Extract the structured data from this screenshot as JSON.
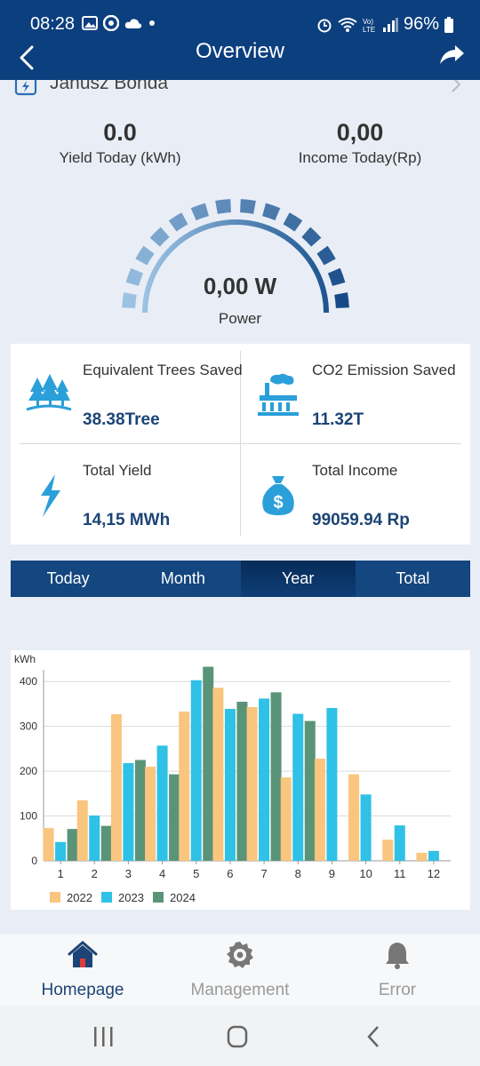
{
  "status_bar": {
    "time": "08:28",
    "battery": "96%"
  },
  "header": {
    "title": "Overview"
  },
  "owner": {
    "name": "Janusz Bonda"
  },
  "yield_today": {
    "value": "0.0",
    "label": "Yield Today (kWh)"
  },
  "income_today": {
    "value": "0,00",
    "label": "Income Today(Rp)"
  },
  "gauge": {
    "value": "0,00 W",
    "label": "Power"
  },
  "stats": [
    {
      "title": "Equivalent Trees Saved",
      "value": "38.38Tree",
      "icon": "trees-icon"
    },
    {
      "title": "CO2 Emission Saved",
      "value": "11.32T",
      "icon": "factory-icon"
    },
    {
      "title": "Total Yield",
      "value": "14,15 MWh",
      "icon": "lightning-icon"
    },
    {
      "title": "Total Income",
      "value": "99059.94 Rp",
      "icon": "money-bag-icon"
    }
  ],
  "tabs": [
    {
      "label": "Today",
      "active": false
    },
    {
      "label": "Month",
      "active": false
    },
    {
      "label": "Year",
      "active": true
    },
    {
      "label": "Total",
      "active": false
    }
  ],
  "chart_data": {
    "type": "bar",
    "ylabel": "kWh",
    "ylim": [
      0,
      450
    ],
    "yticks": [
      0,
      100,
      200,
      300,
      400
    ],
    "categories": [
      "1",
      "2",
      "3",
      "4",
      "5",
      "6",
      "7",
      "8",
      "9",
      "10",
      "11",
      "12"
    ],
    "series": [
      {
        "name": "2022",
        "color": "#f9c57f",
        "values": [
          73,
          135,
          327,
          210,
          333,
          386,
          343,
          186,
          228,
          193,
          47,
          18
        ]
      },
      {
        "name": "2023",
        "color": "#2fc1e6",
        "values": [
          42,
          101,
          218,
          257,
          403,
          339,
          362,
          328,
          341,
          148,
          79,
          22
        ]
      },
      {
        "name": "2024",
        "color": "#5a9478",
        "values": [
          71,
          78,
          225,
          193,
          433,
          355,
          376,
          312,
          0,
          0,
          0,
          0
        ]
      }
    ],
    "legend": "bottom-left",
    "grid": true
  },
  "bottom_nav": [
    {
      "label": "Homepage",
      "icon": "home-icon",
      "active": true
    },
    {
      "label": "Management",
      "icon": "gear-icon",
      "active": false
    },
    {
      "label": "Error",
      "icon": "bell-icon",
      "active": false
    }
  ],
  "colors": {
    "primary": "#0c3f7e",
    "accent_value": "#1c4476",
    "icon_blue": "#2a9fd9"
  }
}
